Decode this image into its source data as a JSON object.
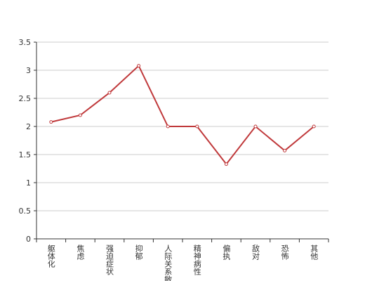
{
  "chart_data": {
    "type": "line",
    "categories": [
      "躯体化",
      "焦虑",
      "强迫症状",
      "抑郁",
      "人际关系敏",
      "精神病性",
      "偏执",
      "敌对",
      "恐怖",
      "其他"
    ],
    "series": [
      {
        "color": "#c0393b",
        "values": [
          2.08,
          2.2,
          2.6,
          3.08,
          2,
          2,
          1.33,
          2,
          1.57,
          2
        ]
      }
    ],
    "ylim": [
      0,
      3.5
    ],
    "yticks": [
      0,
      0.5,
      1,
      1.5,
      2,
      2.5,
      3,
      3.5
    ],
    "grid": true
  }
}
